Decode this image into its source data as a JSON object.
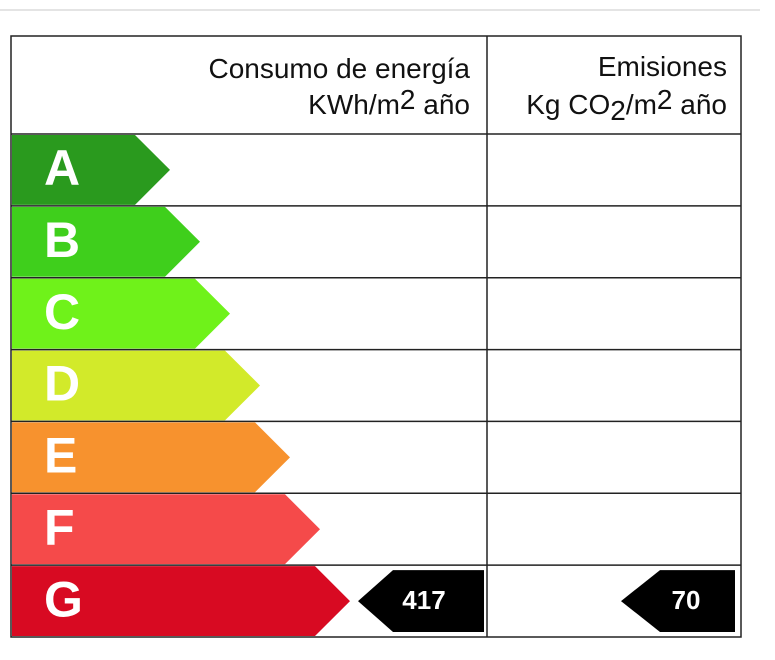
{
  "header": {
    "energy_title": "Consumo de energía",
    "energy_unit": [
      "KWh/m",
      "2",
      " año"
    ],
    "emissions_title": "Emisiones",
    "emissions_unit": [
      "Kg CO",
      "2",
      "/m",
      "2",
      " año"
    ]
  },
  "classes": [
    {
      "letter": "A",
      "color": "#2a9a1e"
    },
    {
      "letter": "B",
      "color": "#3fcf1c"
    },
    {
      "letter": "C",
      "color": "#6ff21a"
    },
    {
      "letter": "D",
      "color": "#d2ea2a"
    },
    {
      "letter": "E",
      "color": "#f7922e"
    },
    {
      "letter": "F",
      "color": "#f54a4a"
    },
    {
      "letter": "G",
      "color": "#d80a22",
      "energy": 417,
      "emissions": 70
    }
  ]
}
